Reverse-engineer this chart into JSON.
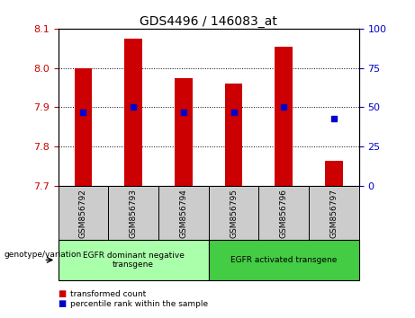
{
  "title": "GDS4496 / 146083_at",
  "samples": [
    "GSM856792",
    "GSM856793",
    "GSM856794",
    "GSM856795",
    "GSM856796",
    "GSM856797"
  ],
  "bar_values": [
    8.0,
    8.075,
    7.975,
    7.96,
    8.055,
    7.765
  ],
  "bar_bottom": 7.7,
  "percentile_values": [
    47,
    50,
    47,
    47,
    50,
    43
  ],
  "ylim_left": [
    7.7,
    8.1
  ],
  "ylim_right": [
    0,
    100
  ],
  "yticks_left": [
    7.7,
    7.8,
    7.9,
    8.0,
    8.1
  ],
  "yticks_right": [
    0,
    25,
    50,
    75,
    100
  ],
  "bar_color": "#cc0000",
  "dot_color": "#0000cc",
  "group1_label": "EGFR dominant negative\ntransgene",
  "group2_label": "EGFR activated transgene",
  "group1_color": "#aaffaa",
  "group2_color": "#44cc44",
  "genotype_label": "genotype/variation",
  "legend_red": "transformed count",
  "legend_blue": "percentile rank within the sample",
  "bar_width": 0.35,
  "title_color": "#000000",
  "left_tick_color": "#cc0000",
  "right_tick_color": "#0000cc",
  "sample_box_color": "#cccccc",
  "background_color": "#ffffff"
}
